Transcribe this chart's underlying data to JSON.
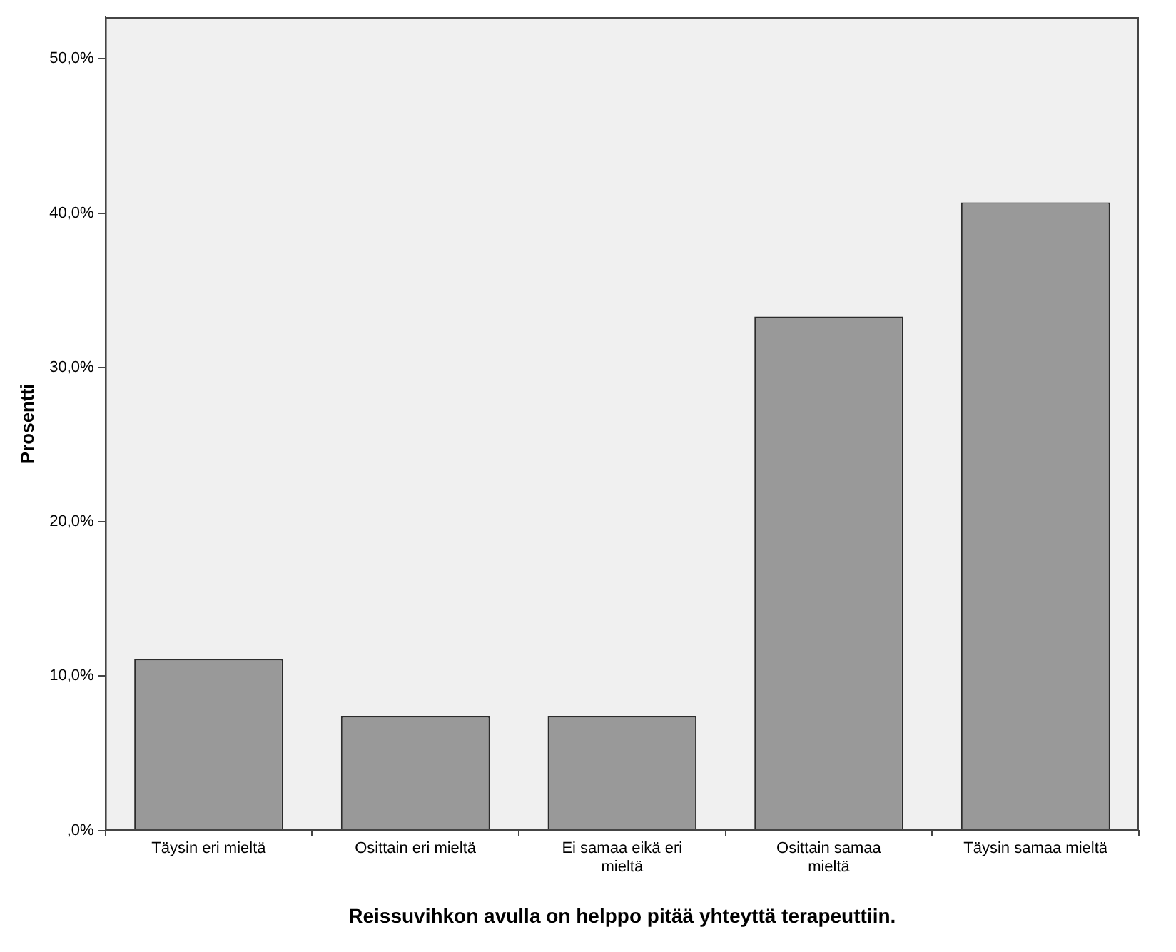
{
  "chart_data": {
    "type": "bar",
    "xlabel": "Reissuvihkon avulla on helppo pitää yhteyttä terapeuttiin.",
    "ylabel": "Prosentti",
    "categories": [
      "Täysin eri mieltä",
      "Osittain eri mieltä",
      "Ei samaa eikä eri mieltä",
      "Osittain samaa mieltä",
      "Täysin samaa mieltä"
    ],
    "values": [
      11.1,
      7.4,
      7.4,
      33.3,
      40.7
    ],
    "color": "#999999",
    "ylim": [
      0,
      52.7
    ],
    "yticks": [
      {
        "value": 0,
        "label": ",0%"
      },
      {
        "value": 10,
        "label": "10,0%"
      },
      {
        "value": 20,
        "label": "20,0%"
      },
      {
        "value": 30,
        "label": "30,0%"
      },
      {
        "value": 40,
        "label": "40,0%"
      },
      {
        "value": 50,
        "label": "50,0%"
      }
    ],
    "grid": false,
    "legend": false
  }
}
